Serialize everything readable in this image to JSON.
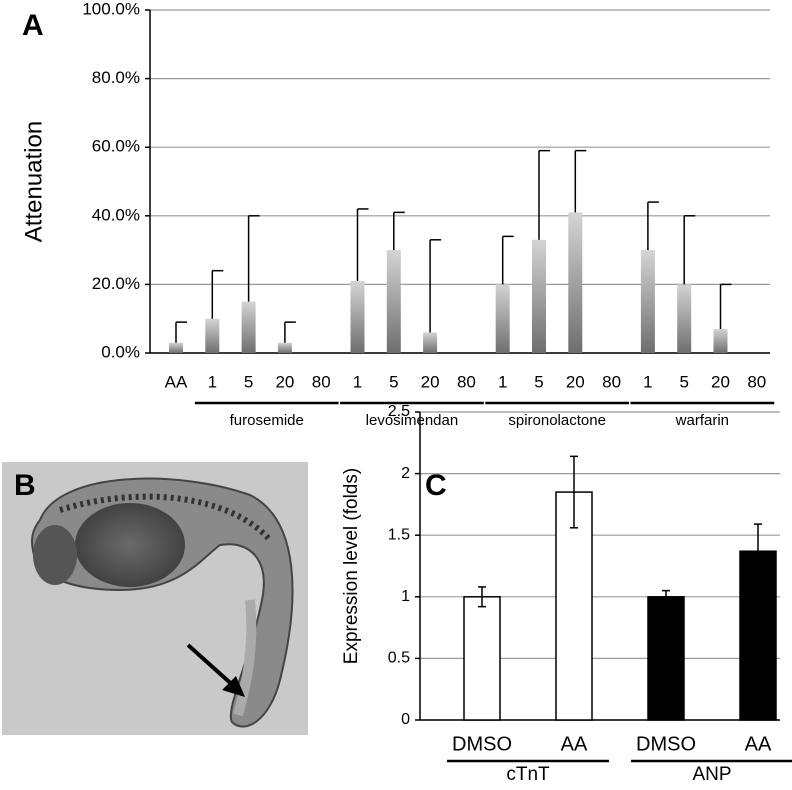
{
  "panel_labels": [
    "A",
    "B",
    "C"
  ],
  "chart_data": [
    {
      "type": "bar",
      "y_label": "Attenuation",
      "categories": [
        "AA",
        "1",
        "5",
        "20",
        "80",
        "1",
        "5",
        "20",
        "80",
        "1",
        "5",
        "20",
        "80",
        "1",
        "5",
        "20",
        "80"
      ],
      "groups": [
        "furosemide",
        "levosimendan",
        "spironolactone",
        "warfarin"
      ],
      "values": [
        3,
        10,
        15,
        3,
        0,
        21,
        30,
        6,
        0,
        20,
        33,
        41,
        0,
        30,
        20,
        7,
        0
      ],
      "errors": [
        6,
        14,
        25,
        6,
        null,
        21,
        11,
        27,
        null,
        14,
        26,
        18,
        null,
        14,
        20,
        13,
        null
      ],
      "colors": [
        "#999999",
        "#999999",
        "#999999",
        "#999999",
        "#999999",
        "#999999",
        "#999999",
        "#999999",
        "#999999",
        "#999999",
        "#999999",
        "#999999",
        "#999999",
        "#999999",
        "#999999",
        "#999999",
        "#999999"
      ],
      "ylim": [
        0,
        100
      ],
      "yticks": [
        {
          "value": 0,
          "label": "0.0%"
        },
        {
          "value": 20,
          "label": "20.0%"
        },
        {
          "value": 40,
          "label": "40.0%"
        },
        {
          "value": 60,
          "label": "60.0%"
        },
        {
          "value": 80,
          "label": "80.0%"
        },
        {
          "value": 100,
          "label": "100.0%"
        }
      ],
      "grid": true
    },
    {
      "type": "bar",
      "y_label": "Expression level (folds)",
      "categories": [
        "DMSO",
        "AA",
        "DMSO",
        "AA"
      ],
      "groups": [
        "cTnT",
        "ANP"
      ],
      "values": [
        1.0,
        1.85,
        1.0,
        1.37
      ],
      "errors": [
        0.08,
        0.29,
        0.05,
        0.22
      ],
      "colors": [
        "#ffffff",
        "#ffffff",
        "#000000",
        "#000000"
      ],
      "ylim": [
        0,
        2.5
      ],
      "yticks": [
        0,
        0.5,
        1,
        1.5,
        2,
        2.5
      ],
      "grid": true
    }
  ]
}
